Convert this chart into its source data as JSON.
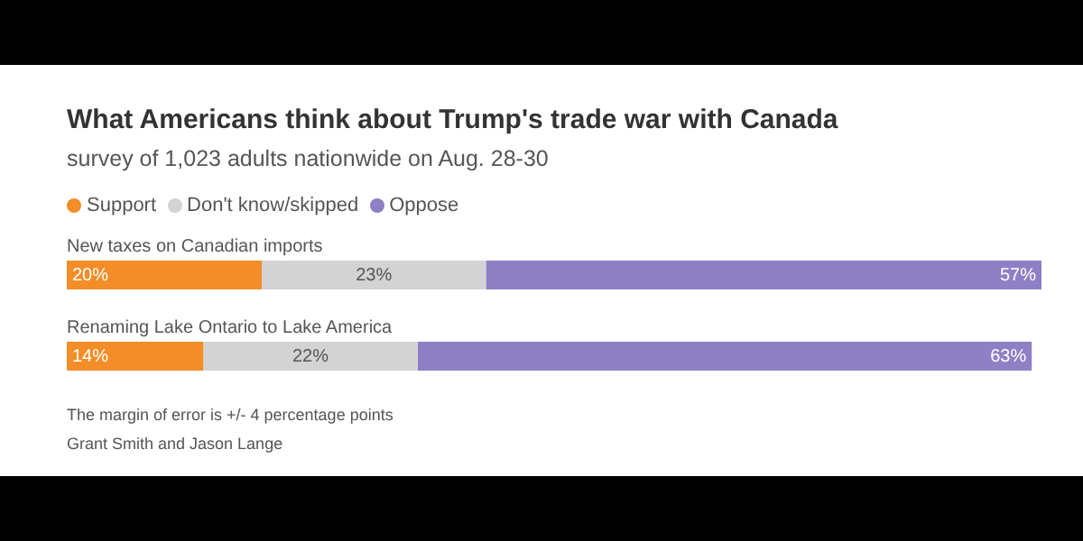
{
  "chart_data": {
    "type": "bar",
    "orientation": "horizontal",
    "stacked": true,
    "title": "What Americans think about Trump's trade war with Canada",
    "subtitle": "survey of 1,023 adults nationwide on Aug. 28-30",
    "categories": [
      "New taxes on Canadian imports",
      "Renaming Lake Ontario to Lake America"
    ],
    "series": [
      {
        "name": "Support",
        "color": "#f28d28",
        "values": [
          20,
          14
        ],
        "value_labels": [
          "20%",
          "14%"
        ]
      },
      {
        "name": "Don't know/skipped",
        "color": "#d3d3d3",
        "values": [
          23,
          22
        ],
        "value_labels": [
          "23%",
          "22%"
        ]
      },
      {
        "name": "Oppose",
        "color": "#8f7fc4",
        "values": [
          57,
          63
        ],
        "value_labels": [
          "57%",
          "63%"
        ]
      }
    ],
    "xlim": [
      0,
      100
    ],
    "tick_labels": false,
    "legend": "top left",
    "annotations": [
      "The margin of error is +/- 4 percentage points",
      "Grant Smith and Jason Lange"
    ]
  }
}
